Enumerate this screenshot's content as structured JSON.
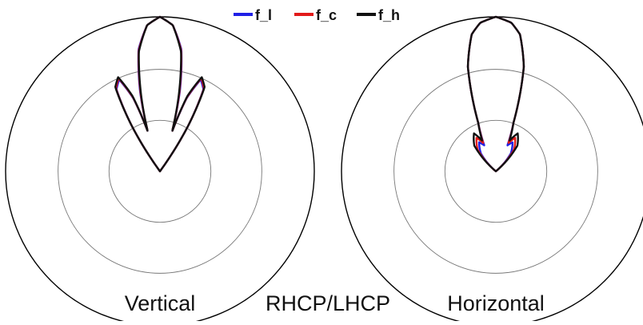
{
  "chart_data": [
    {
      "type": "polar",
      "title": "",
      "label": "Vertical",
      "radial_range": [
        -30,
        0
      ],
      "radial_unit": "dB",
      "rings": [
        -30,
        -20,
        -10,
        0
      ],
      "series": [
        {
          "name": "f_l",
          "color": "#1f1fe6",
          "points": [
            [
              0,
              0
            ],
            [
              5,
              -1.5
            ],
            [
              10,
              -6
            ],
            [
              14,
              -14
            ],
            [
              17,
              -22
            ],
            [
              20,
              -15
            ],
            [
              24,
              -10.5
            ],
            [
              28,
              -12
            ],
            [
              32,
              -20
            ],
            [
              36,
              -30
            ]
          ]
        },
        {
          "name": "f_c",
          "color": "#e21a1a",
          "points": [
            [
              0,
              0
            ],
            [
              5,
              -1.5
            ],
            [
              10,
              -6.2
            ],
            [
              14,
              -14.5
            ],
            [
              17,
              -22
            ],
            [
              20,
              -14.8
            ],
            [
              24,
              -10.2
            ],
            [
              28,
              -11.8
            ],
            [
              32,
              -20
            ],
            [
              36,
              -30
            ]
          ]
        },
        {
          "name": "f_h",
          "color": "#111111",
          "points": [
            [
              0,
              0
            ],
            [
              5,
              -1.5
            ],
            [
              10,
              -6.4
            ],
            [
              14,
              -15
            ],
            [
              17,
              -22
            ],
            [
              20,
              -14.5
            ],
            [
              24,
              -10
            ],
            [
              28,
              -11.5
            ],
            [
              32,
              -20
            ],
            [
              36,
              -30
            ]
          ]
        }
      ]
    },
    {
      "type": "polar",
      "title": "",
      "label": "Horizontal",
      "radial_range": [
        -30,
        0
      ],
      "radial_unit": "dB",
      "rings": [
        -30,
        -20,
        -10,
        0
      ],
      "series": [
        {
          "name": "f_l",
          "color": "#1f1fe6",
          "points": [
            [
              0,
              0
            ],
            [
              6,
              -1
            ],
            [
              10,
              -3
            ],
            [
              15,
              -9
            ],
            [
              20,
              -20
            ],
            [
              24,
              -24.5
            ],
            [
              30,
              -23.5
            ],
            [
              40,
              -25.5
            ],
            [
              50,
              -30
            ]
          ]
        },
        {
          "name": "f_c",
          "color": "#e21a1a",
          "points": [
            [
              0,
              0
            ],
            [
              6,
              -1
            ],
            [
              10,
              -3
            ],
            [
              15,
              -9
            ],
            [
              20,
              -20
            ],
            [
              24,
              -24
            ],
            [
              30,
              -22.5
            ],
            [
              40,
              -24.5
            ],
            [
              50,
              -30
            ]
          ]
        },
        {
          "name": "f_h",
          "color": "#111111",
          "points": [
            [
              0,
              0
            ],
            [
              6,
              -1
            ],
            [
              10,
              -3
            ],
            [
              15,
              -9
            ],
            [
              20,
              -20
            ],
            [
              24,
              -23.5
            ],
            [
              30,
              -21.5
            ],
            [
              40,
              -23.5
            ],
            [
              50,
              -30
            ]
          ]
        }
      ]
    }
  ],
  "legend": {
    "placement": "top-center",
    "entries": [
      {
        "name": "f_l",
        "color": "#1f1fe6"
      },
      {
        "name": "f_c",
        "color": "#e21a1a"
      },
      {
        "name": "f_h",
        "color": "#111111"
      }
    ]
  },
  "labels": {
    "left": "Vertical",
    "center": "RHCP/LHCP",
    "right": "Horizontal"
  }
}
